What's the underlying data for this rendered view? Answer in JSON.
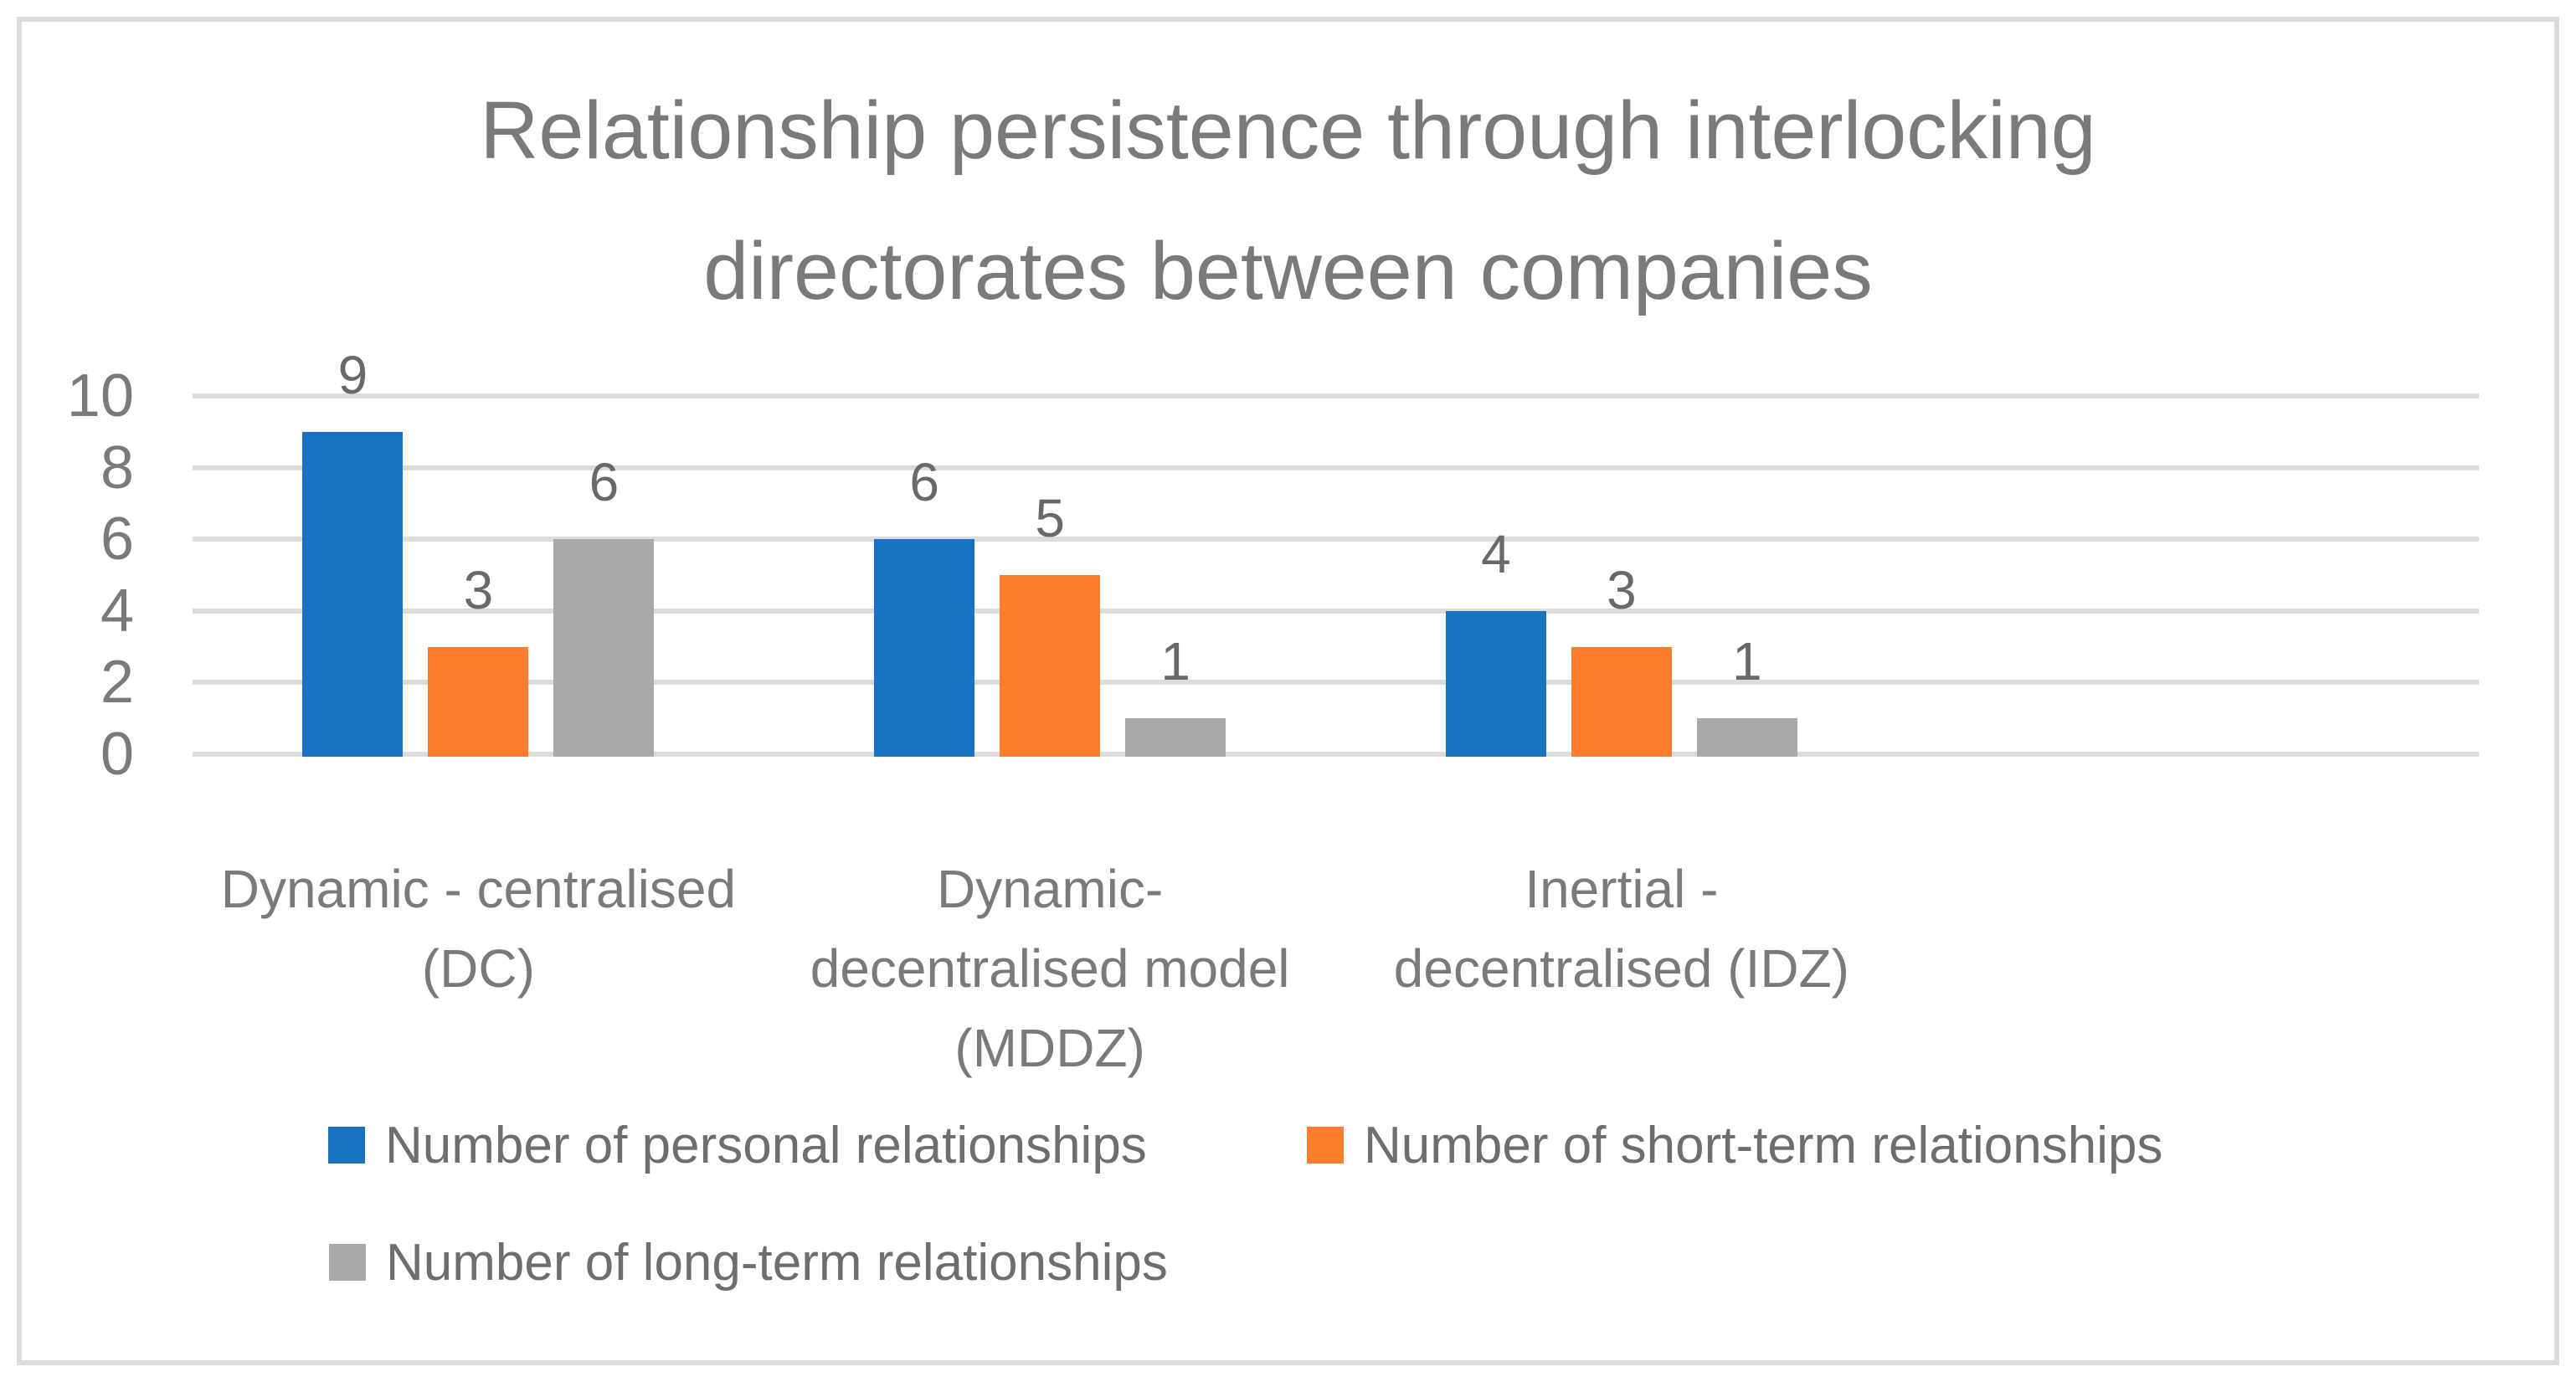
{
  "chart_data": {
    "type": "bar",
    "title": "Relationship persistence through interlocking\ndirectorates between companies",
    "categories": [
      "Dynamic - centralised\n(DC)",
      "Dynamic-\ndecentralised model\n(MDDZ)",
      "Inertial -\ndecentralised (IDZ)"
    ],
    "series": [
      {
        "name": "Number of personal relationships",
        "color": "#1a73c2",
        "values": [
          9,
          6,
          4
        ]
      },
      {
        "name": "Number of short-term relationships",
        "color": "#fd7e2c",
        "values": [
          3,
          5,
          3
        ]
      },
      {
        "name": "Number of long-term relationships",
        "color": "#a9a9a9",
        "values": [
          6,
          1,
          1
        ]
      }
    ],
    "xlabel": "",
    "ylabel": "",
    "ylim": [
      0,
      10
    ],
    "yticks": [
      0,
      2,
      4,
      6,
      8,
      10
    ],
    "grid": true,
    "legend_position": "bottom",
    "data_labels_shown": true
  },
  "colors": {
    "series_blue": "#1a73c2",
    "series_orange": "#fd7e2c",
    "series_gray": "#a9a9a9",
    "title_text": "#7a7a7a",
    "axis_text": "#7a7a7a",
    "data_label_text": "#696969",
    "legend_text": "#6e6e6e",
    "gridline": "#dcdcdc",
    "border": "#dbdbdb",
    "background": "#ffffff"
  }
}
